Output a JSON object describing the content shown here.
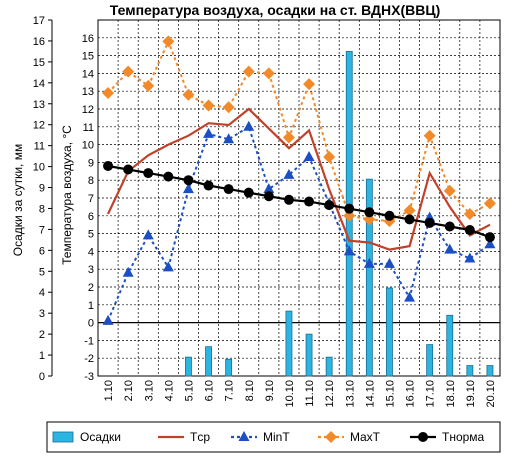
{
  "chart_data": {
    "type": "bar+line",
    "title": "Температура воздуха, осадки на ст. ВДНХ(ВВЦ)",
    "ylabel_left": "Осадки за сутки, мм",
    "ylabel_inner": "Температура воздуха, °С",
    "yticks_left": [
      "0",
      "1",
      "2",
      "3",
      "4",
      "5",
      "6",
      "7",
      "8",
      "9",
      "10",
      "11",
      "12",
      "13",
      "14",
      "15",
      "16",
      "17"
    ],
    "yticks_inner": [
      "-3",
      "-2",
      "-1",
      "0",
      "1",
      "2",
      "3",
      "4",
      "5",
      "6",
      "7",
      "8",
      "9",
      "10",
      "11",
      "12",
      "13",
      "14",
      "15",
      "16"
    ],
    "left_range": [
      0,
      17
    ],
    "temp_range": [
      -3,
      17
    ],
    "grid": true,
    "categories": [
      "1.10",
      "2.10",
      "3.10",
      "4.10",
      "5.10",
      "6.10",
      "7.10",
      "8.10",
      "9.10",
      "10.10",
      "11.10",
      "12.10",
      "13.10",
      "14.10",
      "15.10",
      "16.10",
      "17.10",
      "18.10",
      "19.10",
      "20.10"
    ],
    "series": [
      {
        "name": "Осадки",
        "type": "bar",
        "axis": "left",
        "color": "#2bb5e0",
        "values": [
          0,
          0,
          0,
          0,
          0.9,
          1.4,
          0.8,
          0,
          0,
          3.1,
          2.0,
          0.9,
          15.5,
          9.4,
          4.2,
          0,
          1.5,
          2.9,
          0.5,
          0.5
        ]
      },
      {
        "name": "Tср",
        "type": "line",
        "axis": "temp",
        "color": "#c0422a",
        "values": [
          6.1,
          8.5,
          9.4,
          10.0,
          10.5,
          11.2,
          11.1,
          12.0,
          10.9,
          9.8,
          10.8,
          7.5,
          4.6,
          4.5,
          4.1,
          4.3,
          8.4,
          6.5,
          4.9,
          5.5
        ]
      },
      {
        "name": "MinT",
        "type": "line",
        "axis": "temp",
        "color": "#1d4fc4",
        "values": [
          0.1,
          2.8,
          4.9,
          3.1,
          7.5,
          10.6,
          10.3,
          11.0,
          7.5,
          8.3,
          9.3,
          6.7,
          4.0,
          3.3,
          3.3,
          1.4,
          5.9,
          4.1,
          3.6,
          4.4
        ]
      },
      {
        "name": "MaxT",
        "type": "line",
        "axis": "temp",
        "color": "#f28a2a",
        "values": [
          12.9,
          14.1,
          13.3,
          15.8,
          12.8,
          12.2,
          12.1,
          14.1,
          14.0,
          10.4,
          13.4,
          9.3,
          6.0,
          5.8,
          5.7,
          6.3,
          10.5,
          7.4,
          6.1,
          6.7
        ]
      },
      {
        "name": "Tнорма",
        "type": "line",
        "axis": "temp",
        "color": "#000000",
        "values": [
          8.8,
          8.6,
          8.4,
          8.2,
          8.0,
          7.7,
          7.5,
          7.3,
          7.1,
          6.9,
          6.8,
          6.6,
          6.4,
          6.2,
          6.0,
          5.8,
          5.6,
          5.4,
          5.2,
          4.8
        ]
      }
    ]
  }
}
